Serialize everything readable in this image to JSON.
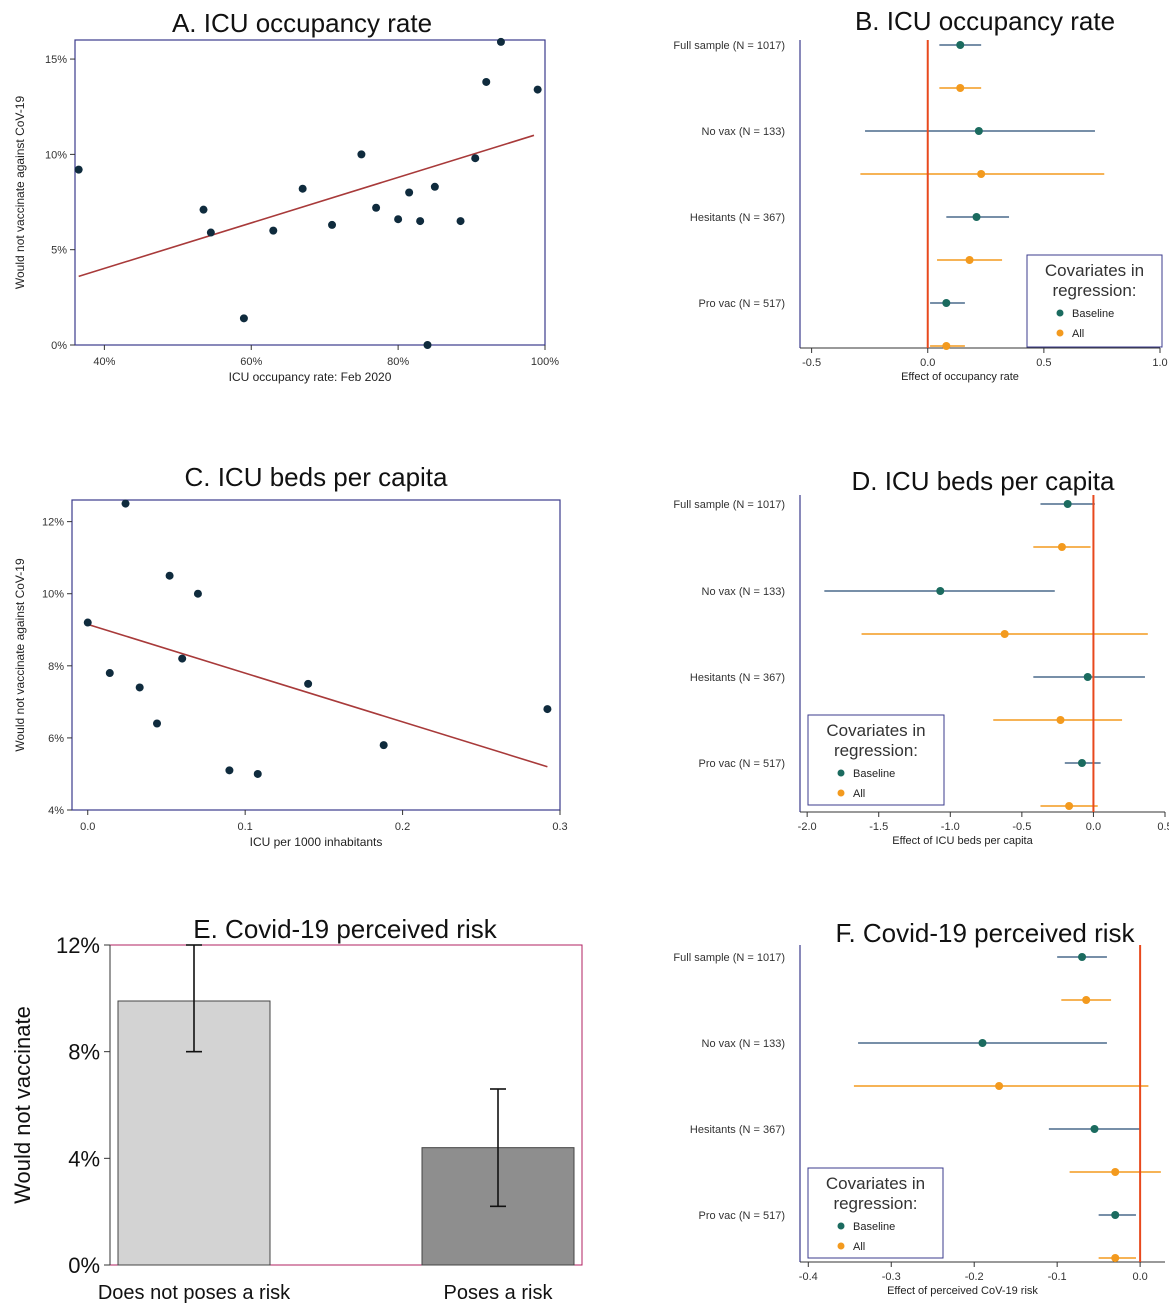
{
  "colors": {
    "dark_dot": "#0f2b3d",
    "fit_line": "#a83a3a",
    "baseline": "#1b6b5f",
    "baseline_ci": "#4a6a8c",
    "all": "#f39a1e",
    "zero_line": "#e8491d",
    "frame": "#3b3b8c",
    "bar_light": "#d3d3d3",
    "bar_dark": "#8e8e8e"
  },
  "chart_data": [
    {
      "id": "A",
      "type": "scatter",
      "title": "A. ICU occupancy rate",
      "xlabel": "ICU occupancy rate: Feb 2020",
      "ylabel": "Would not vaccinate against CoV-19",
      "xlim": [
        36,
        100
      ],
      "ylim": [
        0,
        16
      ],
      "xticks": [
        40,
        60,
        80,
        100
      ],
      "xtick_labels": [
        "40%",
        "60%",
        "80%",
        "100%"
      ],
      "yticks": [
        0,
        5,
        10,
        15
      ],
      "ytick_labels": [
        "0%",
        "5%",
        "10%",
        "15%"
      ],
      "points": [
        [
          36.5,
          9.2
        ],
        [
          53.5,
          7.1
        ],
        [
          54.5,
          5.9
        ],
        [
          59,
          1.4
        ],
        [
          63,
          6.0
        ],
        [
          67,
          8.2
        ],
        [
          71,
          6.3
        ],
        [
          75,
          10.0
        ],
        [
          77,
          7.2
        ],
        [
          80,
          6.6
        ],
        [
          81.5,
          8.0
        ],
        [
          83,
          6.5
        ],
        [
          84,
          0.0
        ],
        [
          85,
          8.3
        ],
        [
          88.5,
          6.5
        ],
        [
          90.5,
          9.8
        ],
        [
          92,
          13.8
        ],
        [
          94,
          15.9
        ],
        [
          99,
          13.4
        ]
      ],
      "fit_line": [
        [
          36.5,
          3.6
        ],
        [
          98.5,
          11.0
        ]
      ]
    },
    {
      "id": "B",
      "type": "forest",
      "title": "B. ICU occupancy rate",
      "xlabel": "Effect of occupancy rate",
      "xlim": [
        -0.55,
        1.0
      ],
      "xticks": [
        -0.5,
        0,
        0.5,
        1.0
      ],
      "xtick_labels": [
        "-0.5",
        "0.0",
        "0.5",
        "1.0"
      ],
      "groups": [
        "Full sample (N = 1017)",
        "No vax (N = 133)",
        "Hesitants (N = 367)",
        "Pro vac (N = 517)"
      ],
      "baseline": [
        {
          "est": 0.14,
          "lo": 0.05,
          "hi": 0.23
        },
        {
          "est": 0.22,
          "lo": -0.27,
          "hi": 0.72
        },
        {
          "est": 0.21,
          "lo": 0.08,
          "hi": 0.35
        },
        {
          "est": 0.08,
          "lo": 0.01,
          "hi": 0.16
        }
      ],
      "all": [
        {
          "est": 0.14,
          "lo": 0.05,
          "hi": 0.23
        },
        {
          "est": 0.23,
          "lo": -0.29,
          "hi": 0.76
        },
        {
          "est": 0.18,
          "lo": 0.04,
          "hi": 0.32
        },
        {
          "est": 0.08,
          "lo": 0.01,
          "hi": 0.16
        }
      ],
      "legend_title": "Covariates in regression:",
      "legend_labels": [
        "Baseline",
        "All"
      ],
      "legend_position": "bottom-right"
    },
    {
      "id": "C",
      "type": "scatter",
      "title": "C. ICU beds per capita",
      "xlabel": "ICU per 1000 inhabitants",
      "ylabel": "Would not vaccinate against CoV-19",
      "xlim": [
        -0.01,
        0.3
      ],
      "ylim": [
        4,
        12.6
      ],
      "xticks": [
        0,
        0.1,
        0.2,
        0.3
      ],
      "xtick_labels": [
        "0.0",
        "0.1",
        "0.2",
        "0.3"
      ],
      "yticks": [
        4,
        6,
        8,
        10,
        12
      ],
      "ytick_labels": [
        "4%",
        "6%",
        "8%",
        "10%",
        "12%"
      ],
      "points": [
        [
          0.0,
          9.2
        ],
        [
          0.014,
          7.8
        ],
        [
          0.024,
          12.5
        ],
        [
          0.033,
          7.4
        ],
        [
          0.044,
          6.4
        ],
        [
          0.052,
          10.5
        ],
        [
          0.06,
          8.2
        ],
        [
          0.07,
          10.0
        ],
        [
          0.09,
          5.1
        ],
        [
          0.108,
          5.0
        ],
        [
          0.14,
          7.5
        ],
        [
          0.188,
          5.8
        ],
        [
          0.292,
          6.8
        ]
      ],
      "fit_line": [
        [
          0.0,
          9.15
        ],
        [
          0.292,
          5.2
        ]
      ]
    },
    {
      "id": "D",
      "type": "forest",
      "title": "D. ICU beds per capita",
      "xlabel": "Effect of ICU beds per capita",
      "xlim": [
        -2.05,
        0.5
      ],
      "xticks": [
        -2.0,
        -1.5,
        -1.0,
        -0.5,
        0.0,
        0.5
      ],
      "xtick_labels": [
        "-2.0",
        "-1.5",
        "-1.0",
        "-0.5",
        "0.0",
        "0.5"
      ],
      "groups": [
        "Full sample (N = 1017)",
        "No vax (N = 133)",
        "Hesitants (N = 367)",
        "Pro vac (N = 517)"
      ],
      "baseline": [
        {
          "est": -0.18,
          "lo": -0.37,
          "hi": 0.01
        },
        {
          "est": -1.07,
          "lo": -1.88,
          "hi": -0.27
        },
        {
          "est": -0.04,
          "lo": -0.42,
          "hi": 0.36
        },
        {
          "est": -0.08,
          "lo": -0.2,
          "hi": 0.05
        }
      ],
      "all": [
        {
          "est": -0.22,
          "lo": -0.42,
          "hi": -0.02
        },
        {
          "est": -0.62,
          "lo": -1.62,
          "hi": 0.38
        },
        {
          "est": -0.23,
          "lo": -0.7,
          "hi": 0.2
        },
        {
          "est": -0.17,
          "lo": -0.37,
          "hi": 0.03
        }
      ],
      "legend_title": "Covariates in regression:",
      "legend_labels": [
        "Baseline",
        "All"
      ],
      "legend_position": "bottom-left"
    },
    {
      "id": "E",
      "type": "bar",
      "title": "E. Covid-19 perceived risk",
      "ylabel": "Would not vaccinate",
      "categories": [
        "Does not poses a risk",
        "Poses a risk"
      ],
      "values": [
        9.9,
        4.4
      ],
      "ci_low": [
        8.0,
        2.2
      ],
      "ci_high": [
        12.0,
        6.6
      ],
      "ylim": [
        0,
        12
      ],
      "yticks": [
        0,
        4,
        8,
        12
      ],
      "ytick_labels": [
        "0%",
        "4%",
        "8%",
        "12%"
      ]
    },
    {
      "id": "F",
      "type": "forest",
      "title": "F. Covid-19 perceived risk",
      "xlabel": "Effect of perceived CoV-19 risk",
      "xlim": [
        -0.41,
        0.03
      ],
      "xticks": [
        -0.4,
        -0.3,
        -0.2,
        -0.1,
        0.0
      ],
      "xtick_labels": [
        "-0.4",
        "-0.3",
        "-0.2",
        "-0.1",
        "0.0"
      ],
      "groups": [
        "Full sample (N = 1017)",
        "No vax (N = 133)",
        "Hesitants (N = 367)",
        "Pro vac (N = 517)"
      ],
      "baseline": [
        {
          "est": -0.07,
          "lo": -0.1,
          "hi": -0.04
        },
        {
          "est": -0.19,
          "lo": -0.34,
          "hi": -0.04
        },
        {
          "est": -0.055,
          "lo": -0.11,
          "hi": 0.0
        },
        {
          "est": -0.03,
          "lo": -0.05,
          "hi": -0.005
        }
      ],
      "all": [
        {
          "est": -0.065,
          "lo": -0.095,
          "hi": -0.035
        },
        {
          "est": -0.17,
          "lo": -0.345,
          "hi": 0.01
        },
        {
          "est": -0.03,
          "lo": -0.085,
          "hi": 0.025
        },
        {
          "est": -0.03,
          "lo": -0.05,
          "hi": -0.005
        }
      ],
      "legend_title": "Covariates in regression:",
      "legend_labels": [
        "Baseline",
        "All"
      ],
      "legend_position": "bottom-left"
    }
  ]
}
